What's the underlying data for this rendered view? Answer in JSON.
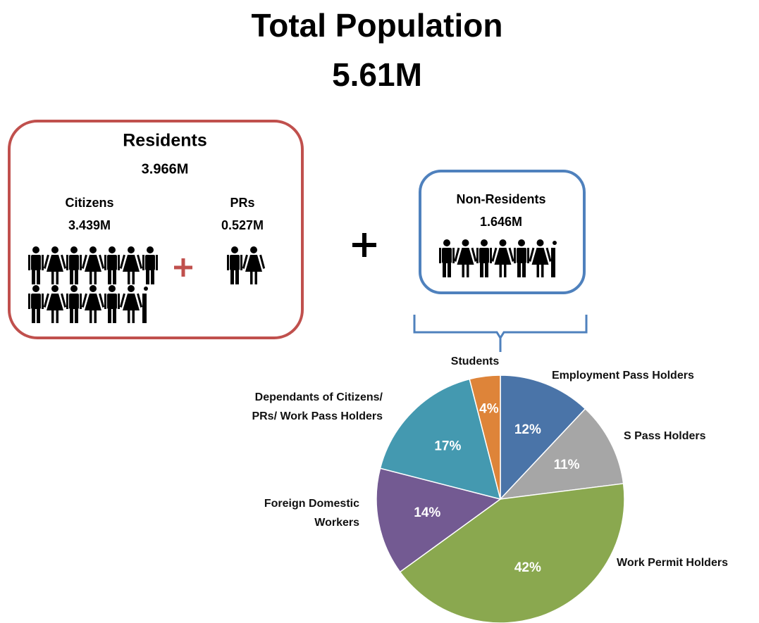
{
  "header": {
    "title": "Total Population",
    "total": "5.61M"
  },
  "residents": {
    "title": "Residents",
    "total": "3.966M",
    "citizens": {
      "label": "Citizens",
      "value": "3.439M"
    },
    "prs": {
      "label": "PRs",
      "value": "0.527M"
    }
  },
  "non_residents": {
    "title": "Non-Residents",
    "total": "1.646M"
  },
  "chart_data": {
    "type": "pie",
    "categories": [
      "Employment Pass Holders",
      "S Pass Holders",
      "Work Permit Holders",
      "Foreign Domestic Workers",
      "Dependants of Citizens/ PRs/ Work Pass Holders",
      "Students"
    ],
    "values": [
      12,
      11,
      42,
      14,
      17,
      4
    ],
    "value_labels": [
      "12%",
      "11%",
      "42%",
      "14%",
      "17%",
      "4%"
    ],
    "colors": [
      "#4a74a8",
      "#a6a6a6",
      "#8aa84f",
      "#735a92",
      "#4499b0",
      "#de8439"
    ]
  }
}
